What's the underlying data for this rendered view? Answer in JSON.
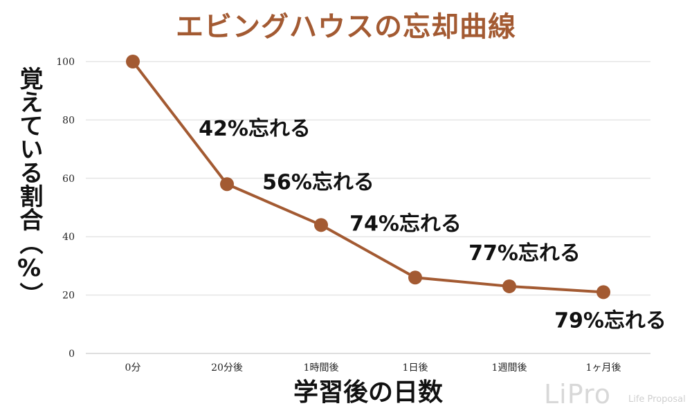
{
  "chart_data": {
    "type": "line",
    "title": "エビングハウスの忘却曲線",
    "xlabel": "学習後の日数",
    "ylabel": "覚えている割合（%）",
    "categories": [
      "0分",
      "20分後",
      "1時間後",
      "1日後",
      "1週間後",
      "1ヶ月後"
    ],
    "series": [
      {
        "name": "覚えている割合",
        "values": [
          100,
          58,
          44,
          26,
          23,
          21
        ]
      }
    ],
    "ylim": [
      0,
      100
    ],
    "yticks": [
      0,
      20,
      40,
      60,
      80,
      100
    ],
    "grid": true,
    "line_color": "#a35a32",
    "annotations": [
      {
        "text": "42%忘れる",
        "category": "20分後"
      },
      {
        "text": "56%忘れる",
        "category": "1時間後"
      },
      {
        "text": "74%忘れる",
        "category": "1日後"
      },
      {
        "text": "77%忘れる",
        "category": "1週間後"
      },
      {
        "text": "79%忘れる",
        "category": "1ヶ月後"
      }
    ]
  },
  "watermark": {
    "brand": "LiPro",
    "tagline": "Life Proposal"
  }
}
